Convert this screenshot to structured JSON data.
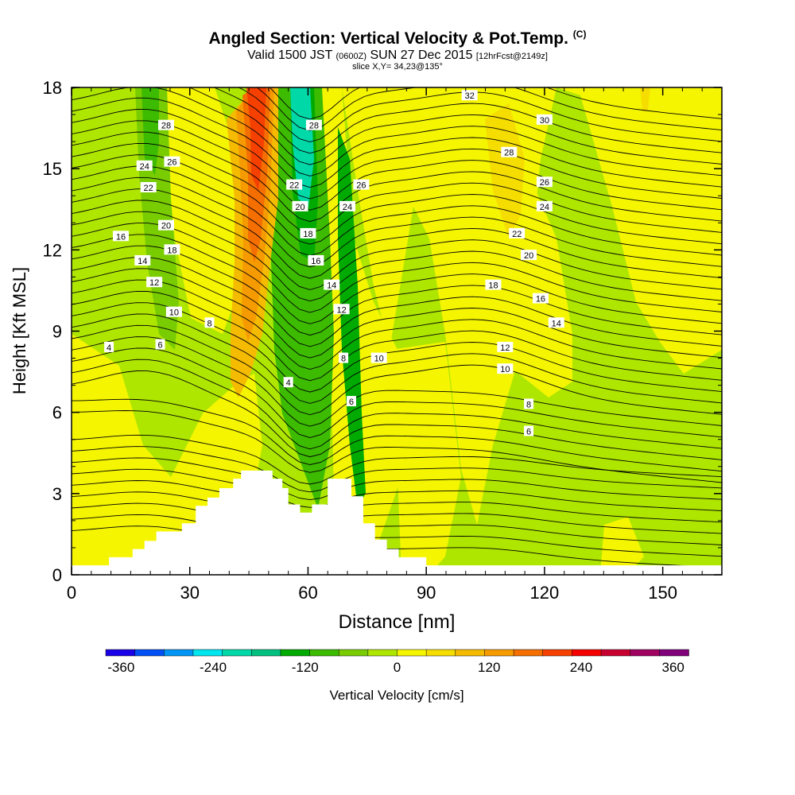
{
  "title": {
    "main": "Angled Section: Vertical Velocity & Pot.Temp.",
    "main_units": "(C)",
    "valid_prefix": "Valid 1500 JST",
    "valid_utc": "(0600Z)",
    "valid_date": "SUN 27 Dec 2015",
    "forecast": "[12hrFcst@2149z]",
    "slice": "slice X,Y= 34,23@135°"
  },
  "chart_data": {
    "type": "heatmap",
    "xlabel": "Distance [nm]",
    "ylabel": "Height [Kft MSL]",
    "xlim": [
      0,
      165
    ],
    "ylim": [
      0,
      18
    ],
    "x_ticks": [
      0,
      30,
      60,
      90,
      120,
      150
    ],
    "y_ticks": [
      0,
      3,
      6,
      9,
      12,
      15,
      18
    ],
    "colorbar": {
      "label": "Vertical Velocity [cm/s]",
      "range": [
        -380,
        380
      ],
      "ticks": [
        -360,
        -240,
        -120,
        0,
        120,
        240,
        360
      ],
      "colors": [
        "#1a00e6",
        "#0050f5",
        "#0095f5",
        "#00e6ee",
        "#00d8a8",
        "#00c080",
        "#00aa00",
        "#3cbb00",
        "#78cc00",
        "#aee600",
        "#f5f500",
        "#f5dd00",
        "#f5bb00",
        "#f59b00",
        "#f56e00",
        "#f54000",
        "#f50000",
        "#c80030",
        "#a00060",
        "#80007a"
      ]
    },
    "contour_labels": [
      {
        "x": 24,
        "y": 16.6,
        "text": "28"
      },
      {
        "x": 18.5,
        "y": 15.1,
        "text": "24"
      },
      {
        "x": 25.5,
        "y": 15.25,
        "text": "26"
      },
      {
        "x": 19.5,
        "y": 14.3,
        "text": "22"
      },
      {
        "x": 24,
        "y": 12.9,
        "text": "20"
      },
      {
        "x": 12.5,
        "y": 12.5,
        "text": "16"
      },
      {
        "x": 25.5,
        "y": 12.0,
        "text": "18"
      },
      {
        "x": 18,
        "y": 11.6,
        "text": "14"
      },
      {
        "x": 21,
        "y": 10.8,
        "text": "12"
      },
      {
        "x": 26,
        "y": 9.7,
        "text": "10"
      },
      {
        "x": 35,
        "y": 9.3,
        "text": "8"
      },
      {
        "x": 22.5,
        "y": 8.5,
        "text": "6"
      },
      {
        "x": 9.5,
        "y": 8.4,
        "text": "4"
      },
      {
        "x": 61.5,
        "y": 16.6,
        "text": "28"
      },
      {
        "x": 56.5,
        "y": 14.4,
        "text": "22"
      },
      {
        "x": 73.5,
        "y": 14.4,
        "text": "26"
      },
      {
        "x": 58,
        "y": 13.6,
        "text": "20"
      },
      {
        "x": 70,
        "y": 13.6,
        "text": "24"
      },
      {
        "x": 60,
        "y": 12.6,
        "text": "18"
      },
      {
        "x": 62,
        "y": 11.6,
        "text": "16"
      },
      {
        "x": 66,
        "y": 10.7,
        "text": "14"
      },
      {
        "x": 68.5,
        "y": 9.8,
        "text": "12"
      },
      {
        "x": 69,
        "y": 8.0,
        "text": "8"
      },
      {
        "x": 78,
        "y": 8.0,
        "text": "10"
      },
      {
        "x": 55,
        "y": 7.1,
        "text": "4"
      },
      {
        "x": 71,
        "y": 6.4,
        "text": "6"
      },
      {
        "x": 101,
        "y": 17.7,
        "text": "32"
      },
      {
        "x": 120,
        "y": 16.8,
        "text": "30"
      },
      {
        "x": 111,
        "y": 15.6,
        "text": "28"
      },
      {
        "x": 120,
        "y": 14.5,
        "text": "26"
      },
      {
        "x": 120,
        "y": 13.6,
        "text": "24"
      },
      {
        "x": 113,
        "y": 12.6,
        "text": "22"
      },
      {
        "x": 116,
        "y": 11.8,
        "text": "20"
      },
      {
        "x": 107,
        "y": 10.7,
        "text": "18"
      },
      {
        "x": 119,
        "y": 10.2,
        "text": "16"
      },
      {
        "x": 123,
        "y": 9.3,
        "text": "14"
      },
      {
        "x": 110,
        "y": 8.4,
        "text": "12"
      },
      {
        "x": 110,
        "y": 7.6,
        "text": "10"
      },
      {
        "x": 116,
        "y": 6.3,
        "text": "8"
      },
      {
        "x": 116,
        "y": 5.3,
        "text": "6"
      }
    ],
    "terrain": [
      [
        0,
        0.35
      ],
      [
        9.5,
        0.35
      ],
      [
        9.5,
        0.65
      ],
      [
        15.5,
        0.65
      ],
      [
        15.5,
        0.95
      ],
      [
        18.5,
        0.95
      ],
      [
        18.5,
        1.25
      ],
      [
        21.5,
        1.25
      ],
      [
        21.5,
        1.6
      ],
      [
        28,
        1.6
      ],
      [
        28,
        1.9
      ],
      [
        31.5,
        1.9
      ],
      [
        31.5,
        2.55
      ],
      [
        34.5,
        2.55
      ],
      [
        34.5,
        2.85
      ],
      [
        37.5,
        2.85
      ],
      [
        37.5,
        3.2
      ],
      [
        41,
        3.2
      ],
      [
        41,
        3.55
      ],
      [
        43,
        3.55
      ],
      [
        43,
        3.85
      ],
      [
        51,
        3.85
      ],
      [
        51,
        3.55
      ],
      [
        53.5,
        3.55
      ],
      [
        53.5,
        3.2
      ],
      [
        55,
        3.2
      ],
      [
        55,
        2.6
      ],
      [
        58,
        2.6
      ],
      [
        58,
        2.3
      ],
      [
        61,
        2.3
      ],
      [
        61,
        2.6
      ],
      [
        65,
        2.6
      ],
      [
        65,
        3.55
      ],
      [
        71,
        3.55
      ],
      [
        71,
        2.9
      ],
      [
        74,
        2.9
      ],
      [
        74,
        1.9
      ],
      [
        77,
        1.9
      ],
      [
        77,
        1.3
      ],
      [
        80,
        1.3
      ],
      [
        80,
        0.95
      ],
      [
        83,
        0.95
      ],
      [
        83,
        0.65
      ],
      [
        90,
        0.65
      ],
      [
        90,
        0.35
      ],
      [
        165,
        0.35
      ]
    ]
  }
}
